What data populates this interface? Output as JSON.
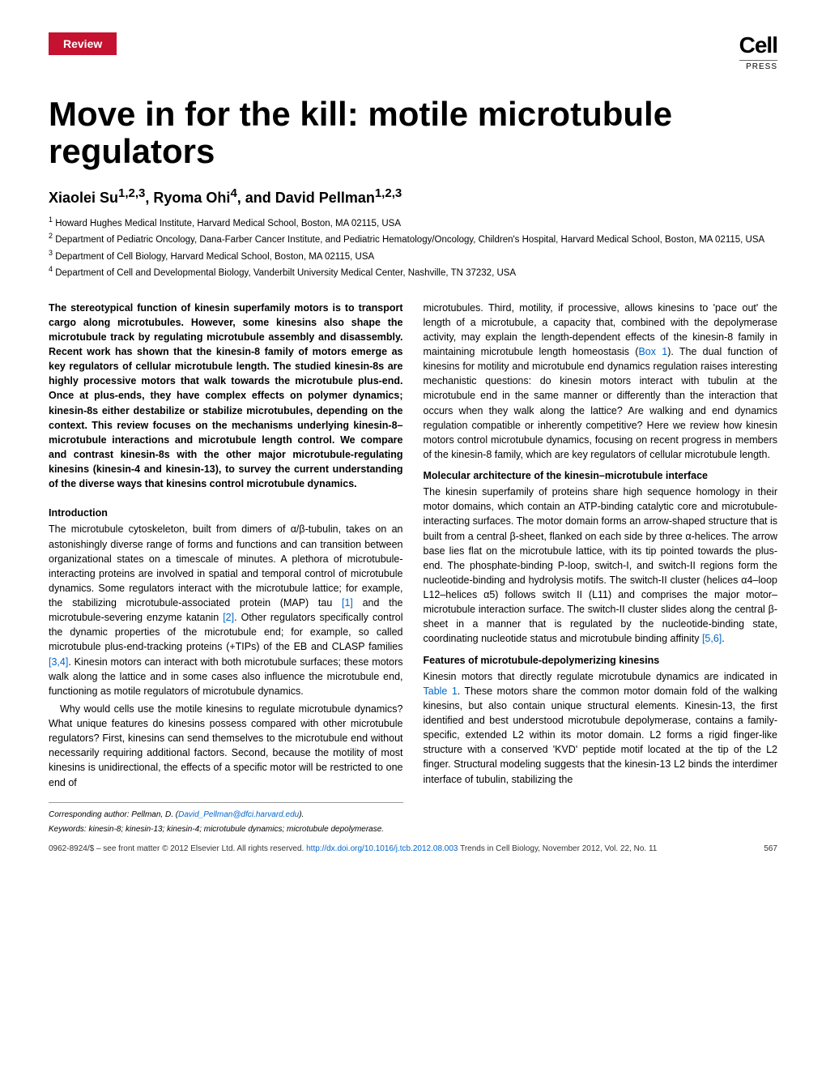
{
  "badge": "Review",
  "logo": {
    "text": "Cell",
    "subtext": "PRESS"
  },
  "title": "Move in for the kill: motile microtubule regulators",
  "authors": "Xiaolei Su",
  "authors_sup1": "1,2,3",
  "authors_mid": ", Ryoma Ohi",
  "authors_sup2": "4",
  "authors_mid2": ", and David Pellman",
  "authors_sup3": "1,2,3",
  "affiliations": {
    "a1": "Howard Hughes Medical Institute, Harvard Medical School, Boston, MA 02115, USA",
    "a2": "Department of Pediatric Oncology, Dana-Farber Cancer Institute, and Pediatric Hematology/Oncology, Children's Hospital, Harvard Medical School, Boston, MA 02115, USA",
    "a3": "Department of Cell Biology, Harvard Medical School, Boston, MA 02115, USA",
    "a4": "Department of Cell and Developmental Biology, Vanderbilt University Medical Center, Nashville, TN 37232, USA"
  },
  "left_column": {
    "abstract": "The stereotypical function of kinesin superfamily motors is to transport cargo along microtubules. However, some kinesins also shape the microtubule track by regulating microtubule assembly and disassembly. Recent work has shown that the kinesin-8 family of motors emerge as key regulators of cellular microtubule length. The studied kinesin-8s are highly processive motors that walk towards the microtubule plus-end. Once at plus-ends, they have complex effects on polymer dynamics; kinesin-8s either destabilize or stabilize microtubules, depending on the context. This review focuses on the mechanisms underlying kinesin-8–microtubule interactions and microtubule length control. We compare and contrast kinesin-8s with the other major microtubule-regulating kinesins (kinesin-4 and kinesin-13), to survey the current understanding of the diverse ways that kinesins control microtubule dynamics.",
    "intro_heading": "Introduction",
    "intro_p1a": "The microtubule cytoskeleton, built from dimers of α/β-tubulin, takes on an astonishingly diverse range of forms and functions and can transition between organizational states on a timescale of minutes. A plethora of microtubule-interacting proteins are involved in spatial and temporal control of microtubule dynamics. Some regulators interact with the microtubule lattice; for example, the stabilizing microtubule-associated protein (MAP) tau ",
    "intro_ref1": "[1]",
    "intro_p1b": " and the microtubule-severing enzyme katanin ",
    "intro_ref2": "[2]",
    "intro_p1c": ". Other regulators specifically control the dynamic properties of the microtubule end; for example, so called microtubule plus-end-tracking proteins (+TIPs) of the EB and CLASP families ",
    "intro_ref3": "[3,4]",
    "intro_p1d": ". Kinesin motors can interact with both microtubule surfaces; these motors walk along the lattice and in some cases also influence the microtubule end, functioning as motile regulators of microtubule dynamics.",
    "intro_p2": "Why would cells use the motile kinesins to regulate microtubule dynamics? What unique features do kinesins possess compared with other microtubule regulators? First, kinesins can send themselves to the microtubule end without necessarily requiring additional factors. Second, because the motility of most kinesins is unidirectional, the effects of a specific motor will be restricted to one end of",
    "corresponding_label": "Corresponding author:",
    "corresponding_text": " Pellman, D. (",
    "corresponding_email": "David_Pellman@dfci.harvard.edu",
    "corresponding_close": ").",
    "keywords_label": "Keywords:",
    "keywords_text": " kinesin-8; kinesin-13; kinesin-4; microtubule dynamics; microtubule depolymerase."
  },
  "right_column": {
    "p1a": "microtubules. Third, motility, if processive, allows kinesins to 'pace out' the length of a microtubule, a capacity that, combined with the depolymerase activity, may explain the length-dependent effects of the kinesin-8 family in maintaining microtubule length homeostasis (",
    "box_ref": "Box 1",
    "p1b": "). The dual function of kinesins for motility and microtubule end dynamics regulation raises interesting mechanistic questions: do kinesin motors interact with tubulin at the microtubule end in the same manner or differently than the interaction that occurs when they walk along the lattice? Are walking and end dynamics regulation compatible or inherently competitive? Here we review how kinesin motors control microtubule dynamics, focusing on recent progress in members of the kinesin-8 family, which are key regulators of cellular microtubule length.",
    "h2": "Molecular architecture of the kinesin–microtubule interface",
    "p2a": "The kinesin superfamily of proteins share high sequence homology in their motor domains, which contain an ATP-binding catalytic core and microtubule-interacting surfaces. The motor domain forms an arrow-shaped structure that is built from a central β-sheet, flanked on each side by three α-helices. The arrow base lies flat on the microtubule lattice, with its tip pointed towards the plus-end. The phosphate-binding P-loop, switch-I, and switch-II regions form the nucleotide-binding and hydrolysis motifs. The switch-II cluster (helices α4–loop L12–helices α5) follows switch II (L11) and comprises the major motor–microtubule interaction surface. The switch-II cluster slides along the central β-sheet in a manner that is regulated by the nucleotide-binding state, coordinating nucleotide status and microtubule binding affinity ",
    "p2_ref": "[5,6]",
    "p2b": ".",
    "h3": "Features of microtubule-depolymerizing kinesins",
    "p3a": "Kinesin motors that directly regulate microtubule dynamics are indicated in ",
    "table_ref": "Table 1",
    "p3b": ". These motors share the common motor domain fold of the walking kinesins, but also contain unique structural elements. Kinesin-13, the first identified and best understood microtubule depolymerase, contains a family-specific, extended L2 within its motor domain. L2 forms a rigid finger-like structure with a conserved 'KVD' peptide motif located at the tip of the L2 finger. Structural modeling suggests that the kinesin-13 L2 binds the interdimer interface of tubulin, stabilizing the"
  },
  "footer": {
    "copyright": "0962-8924/$ – see front matter © 2012 Elsevier Ltd. All rights reserved. ",
    "doi": "http://dx.doi.org/10.1016/j.tcb.2012.08.003",
    "journal": " Trends in Cell Biology, November 2012, Vol. 22, No. 11",
    "page": "567"
  },
  "colors": {
    "badge_bg": "#c41230",
    "link": "#0066cc",
    "text": "#000000",
    "bg": "#ffffff"
  }
}
